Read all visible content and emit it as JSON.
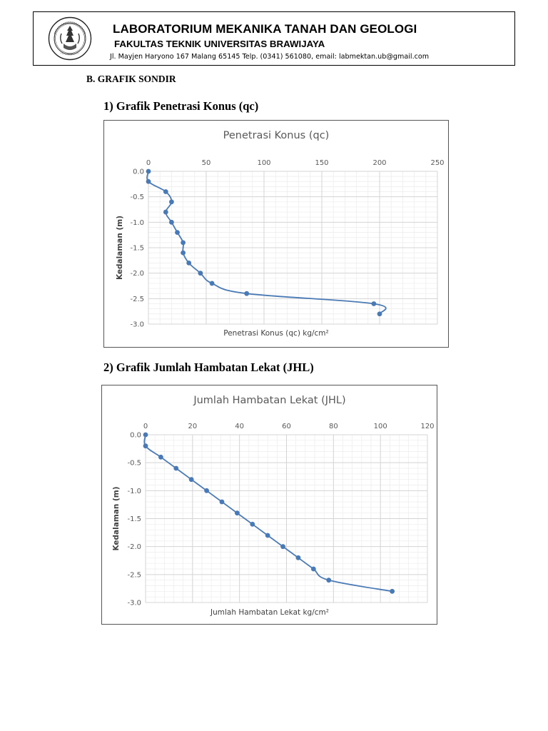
{
  "header": {
    "title": "LABORATORIUM MEKANIKA TANAH DAN GEOLOGI",
    "subtitle": "FAKULTAS TEKNIK UNIVERSITAS BRAWIJAYA",
    "address": "Jl. Mayjen Haryono 167 Malang 65145 Telp. (0341) 561080, email: labmektan.ub@gmail.com",
    "logo_icon": "universitas-brawijaya-seal"
  },
  "section_heading": "B.  GRAFIK SONDIR",
  "subheading_1": "1)  Grafik Penetrasi Konus (qc)",
  "subheading_2": "2)  Grafik Jumlah Hambatan Lekat (JHL)",
  "colors": {
    "series": "#4a7ab5",
    "grid_major": "#d4d4d4",
    "grid_minor": "#ececec",
    "tick_text": "#595959"
  },
  "chart_data": [
    {
      "type": "line",
      "title": "Penetrasi Konus (qc)",
      "xlabel": "Penetrasi Konus (qc) kg/cm²",
      "ylabel": "Kedalaman (m)",
      "xlim": [
        0,
        250
      ],
      "ylim": [
        -3.0,
        0.0
      ],
      "x_ticks": [
        "0",
        "50",
        "100",
        "150",
        "200",
        "250"
      ],
      "y_ticks": [
        "0.0",
        "-0.5",
        "-1.0",
        "-1.5",
        "-2.0",
        "-2.5",
        "-3.0"
      ],
      "x_axis_position": "top",
      "grid": true,
      "legend": "none",
      "series": [
        {
          "x": [
            0,
            0,
            15,
            20,
            15,
            20,
            25,
            30,
            30,
            35,
            45,
            55,
            85,
            195,
            200
          ],
          "y": [
            0.0,
            -0.2,
            -0.4,
            -0.6,
            -0.8,
            -1.0,
            -1.2,
            -1.4,
            -1.6,
            -1.8,
            -2.0,
            -2.2,
            -2.4,
            -2.6,
            -2.8
          ]
        }
      ]
    },
    {
      "type": "line",
      "title": "Jumlah Hambatan Lekat (JHL)",
      "xlabel": "Jumlah Hambatan Lekat kg/cm²",
      "ylabel": "Kedalaman (m)",
      "xlim": [
        0,
        120
      ],
      "ylim": [
        -3.0,
        0.0
      ],
      "x_ticks": [
        "0",
        "20",
        "40",
        "60",
        "80",
        "100",
        "120"
      ],
      "y_ticks": [
        "0.0",
        "-0.5",
        "-1.0",
        "-1.5",
        "-2.0",
        "-2.5",
        "-3.0"
      ],
      "x_axis_position": "top",
      "grid": true,
      "legend": "none",
      "series": [
        {
          "x": [
            0,
            0,
            6.5,
            13,
            19.5,
            26,
            32.5,
            39,
            45.5,
            52,
            58.5,
            65,
            71.5,
            78,
            105
          ],
          "y": [
            0.0,
            -0.2,
            -0.4,
            -0.6,
            -0.8,
            -1.0,
            -1.2,
            -1.4,
            -1.6,
            -1.8,
            -2.0,
            -2.2,
            -2.4,
            -2.6,
            -2.8
          ]
        }
      ]
    }
  ]
}
